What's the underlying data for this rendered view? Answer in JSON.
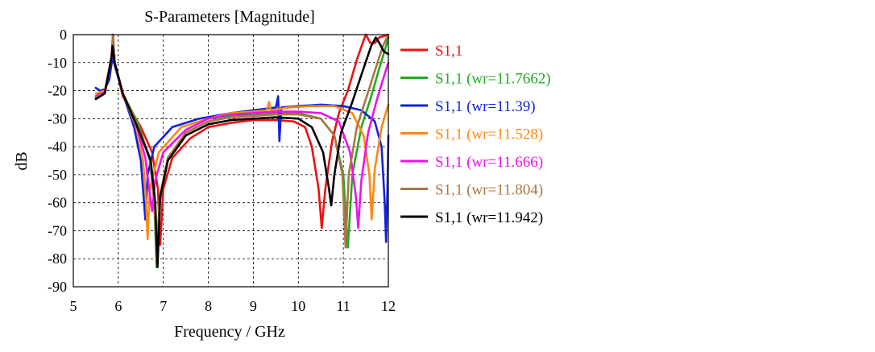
{
  "chart_data": {
    "type": "line",
    "title": "S-Parameters [Magnitude]",
    "xlabel": "Frequency / GHz",
    "ylabel": "dB",
    "xlim": [
      5,
      12
    ],
    "ylim": [
      -90,
      0
    ],
    "xticks": [
      "5",
      "6",
      "7",
      "8",
      "9",
      "10",
      "11",
      "12"
    ],
    "yticks": [
      "0",
      "-10",
      "-20",
      "-30",
      "-40",
      "-50",
      "-60",
      "-70",
      "-80",
      "-90"
    ],
    "grid": true,
    "legend_position": "right",
    "series": [
      {
        "name": "S1,1",
        "color": "#ee1111",
        "points": [
          [
            5.5,
            -22
          ],
          [
            5.7,
            -20
          ],
          [
            5.85,
            -8
          ],
          [
            5.88,
            0
          ],
          [
            5.92,
            -10
          ],
          [
            6.1,
            -22
          ],
          [
            6.5,
            -33
          ],
          [
            6.75,
            -42
          ],
          [
            6.88,
            -55
          ],
          [
            6.93,
            -75
          ],
          [
            7.0,
            -55
          ],
          [
            7.2,
            -44
          ],
          [
            7.6,
            -37
          ],
          [
            8.0,
            -33
          ],
          [
            8.5,
            -31.5
          ],
          [
            9.0,
            -30.5
          ],
          [
            9.5,
            -30.5
          ],
          [
            9.9,
            -31
          ],
          [
            10.15,
            -33
          ],
          [
            10.3,
            -40
          ],
          [
            10.45,
            -55
          ],
          [
            10.52,
            -69
          ],
          [
            10.6,
            -55
          ],
          [
            10.75,
            -38
          ],
          [
            10.9,
            -28
          ],
          [
            11.1,
            -20
          ],
          [
            11.3,
            -9
          ],
          [
            11.45,
            -2
          ],
          [
            11.5,
            0
          ],
          [
            11.6,
            -3
          ],
          [
            11.7,
            -3
          ],
          [
            11.8,
            -1
          ],
          [
            11.9,
            -0.5
          ],
          [
            12,
            0
          ]
        ]
      },
      {
        "name": "S1,1 (wr=11.7662)",
        "color": "#22aa22",
        "points": [
          [
            5.5,
            -22
          ],
          [
            5.7,
            -20.5
          ],
          [
            5.85,
            -8
          ],
          [
            5.88,
            0
          ],
          [
            5.92,
            -10
          ],
          [
            6.1,
            -21
          ],
          [
            6.45,
            -32
          ],
          [
            6.7,
            -45
          ],
          [
            6.8,
            -60
          ],
          [
            6.85,
            -83
          ],
          [
            6.92,
            -60
          ],
          [
            7.1,
            -44
          ],
          [
            7.5,
            -35
          ],
          [
            8.0,
            -31
          ],
          [
            8.5,
            -29
          ],
          [
            9.0,
            -28.5
          ],
          [
            9.5,
            -28
          ],
          [
            10.0,
            -28
          ],
          [
            10.5,
            -30
          ],
          [
            10.8,
            -36
          ],
          [
            11.0,
            -50
          ],
          [
            11.1,
            -76
          ],
          [
            11.2,
            -50
          ],
          [
            11.4,
            -33
          ],
          [
            11.6,
            -23
          ],
          [
            11.8,
            -12
          ],
          [
            11.95,
            -4
          ],
          [
            12,
            -1
          ]
        ]
      },
      {
        "name": "S1,1 (wr=11.39)",
        "color": "#1122dd",
        "points": [
          [
            5.5,
            -19
          ],
          [
            5.6,
            -20
          ],
          [
            5.7,
            -19.5
          ],
          [
            5.8,
            -16
          ],
          [
            5.87,
            -8
          ],
          [
            5.9,
            -10
          ],
          [
            6.1,
            -21
          ],
          [
            6.35,
            -33
          ],
          [
            6.5,
            -45
          ],
          [
            6.6,
            -66
          ],
          [
            6.65,
            -50
          ],
          [
            6.8,
            -40
          ],
          [
            7.2,
            -33
          ],
          [
            7.8,
            -30
          ],
          [
            8.5,
            -28
          ],
          [
            9.0,
            -27
          ],
          [
            9.5,
            -26
          ],
          [
            9.55,
            -22
          ],
          [
            9.58,
            -38
          ],
          [
            9.62,
            -26
          ],
          [
            10.0,
            -25.5
          ],
          [
            10.5,
            -25
          ],
          [
            11.0,
            -25.5
          ],
          [
            11.4,
            -27
          ],
          [
            11.7,
            -31
          ],
          [
            11.85,
            -40
          ],
          [
            11.92,
            -60
          ],
          [
            11.95,
            -74
          ],
          [
            11.98,
            -55
          ],
          [
            12,
            -36
          ]
        ]
      },
      {
        "name": "S1,1 (wr=11.528)",
        "color": "#ff8811",
        "points": [
          [
            5.5,
            -21
          ],
          [
            5.7,
            -20
          ],
          [
            5.85,
            -8
          ],
          [
            5.88,
            0
          ],
          [
            5.92,
            -10
          ],
          [
            6.1,
            -21
          ],
          [
            6.4,
            -33
          ],
          [
            6.55,
            -45
          ],
          [
            6.62,
            -60
          ],
          [
            6.65,
            -73
          ],
          [
            6.7,
            -55
          ],
          [
            6.9,
            -42
          ],
          [
            7.4,
            -33
          ],
          [
            8.0,
            -30
          ],
          [
            8.5,
            -28
          ],
          [
            9.0,
            -27.5
          ],
          [
            9.3,
            -27
          ],
          [
            9.35,
            -24
          ],
          [
            9.38,
            -27
          ],
          [
            9.8,
            -26
          ],
          [
            10.3,
            -25.5
          ],
          [
            10.8,
            -25.5
          ],
          [
            11.2,
            -28
          ],
          [
            11.45,
            -36
          ],
          [
            11.58,
            -50
          ],
          [
            11.63,
            -66
          ],
          [
            11.7,
            -48
          ],
          [
            11.85,
            -33
          ],
          [
            12,
            -25
          ]
        ]
      },
      {
        "name": "S1,1 (wr=11.666)",
        "color": "#ee11ee",
        "points": [
          [
            5.5,
            -22
          ],
          [
            5.7,
            -20.5
          ],
          [
            5.85,
            -8
          ],
          [
            5.88,
            0
          ],
          [
            5.92,
            -10
          ],
          [
            6.1,
            -21
          ],
          [
            6.4,
            -32
          ],
          [
            6.6,
            -44
          ],
          [
            6.7,
            -57
          ],
          [
            6.75,
            -63
          ],
          [
            6.82,
            -52
          ],
          [
            7.0,
            -42
          ],
          [
            7.5,
            -34
          ],
          [
            8.0,
            -30
          ],
          [
            8.5,
            -28.5
          ],
          [
            9.0,
            -28
          ],
          [
            9.5,
            -27.5
          ],
          [
            10.0,
            -27.5
          ],
          [
            10.5,
            -28
          ],
          [
            10.9,
            -31
          ],
          [
            11.15,
            -42
          ],
          [
            11.28,
            -58
          ],
          [
            11.33,
            -69
          ],
          [
            11.4,
            -52
          ],
          [
            11.55,
            -35
          ],
          [
            11.75,
            -23
          ],
          [
            11.9,
            -15
          ],
          [
            12,
            -10
          ]
        ]
      },
      {
        "name": "S1,1 (wr=11.804)",
        "color": "#aa7744",
        "points": [
          [
            5.5,
            -22.5
          ],
          [
            5.7,
            -21
          ],
          [
            5.85,
            -8
          ],
          [
            5.88,
            0
          ],
          [
            5.92,
            -10
          ],
          [
            6.1,
            -21
          ],
          [
            6.45,
            -33
          ],
          [
            6.7,
            -44
          ],
          [
            6.8,
            -58
          ],
          [
            6.85,
            -80
          ],
          [
            6.92,
            -58
          ],
          [
            7.1,
            -44
          ],
          [
            7.5,
            -35
          ],
          [
            8.0,
            -31
          ],
          [
            8.5,
            -29.5
          ],
          [
            9.0,
            -29
          ],
          [
            9.5,
            -28.5
          ],
          [
            10.0,
            -28.5
          ],
          [
            10.5,
            -30
          ],
          [
            10.8,
            -36
          ],
          [
            10.98,
            -50
          ],
          [
            11.05,
            -76
          ],
          [
            11.12,
            -50
          ],
          [
            11.3,
            -33
          ],
          [
            11.5,
            -23
          ],
          [
            11.7,
            -13
          ],
          [
            11.88,
            -4
          ],
          [
            12,
            0
          ]
        ]
      },
      {
        "name": "S1,1 (wr=11.942)",
        "color": "#000000",
        "points": [
          [
            5.5,
            -23
          ],
          [
            5.7,
            -21
          ],
          [
            5.85,
            -8
          ],
          [
            5.87,
            -4
          ],
          [
            5.92,
            -10
          ],
          [
            6.1,
            -21
          ],
          [
            6.45,
            -34
          ],
          [
            6.72,
            -45
          ],
          [
            6.82,
            -60
          ],
          [
            6.87,
            -83
          ],
          [
            6.93,
            -58
          ],
          [
            7.1,
            -45
          ],
          [
            7.5,
            -36
          ],
          [
            8.0,
            -32
          ],
          [
            8.5,
            -30.5
          ],
          [
            9.0,
            -30
          ],
          [
            9.5,
            -29.5
          ],
          [
            10.0,
            -30
          ],
          [
            10.3,
            -33
          ],
          [
            10.55,
            -42
          ],
          [
            10.68,
            -55
          ],
          [
            10.73,
            -61
          ],
          [
            10.8,
            -50
          ],
          [
            10.95,
            -35
          ],
          [
            11.2,
            -24
          ],
          [
            11.45,
            -12
          ],
          [
            11.62,
            -4
          ],
          [
            11.72,
            -1
          ],
          [
            11.8,
            -3
          ],
          [
            11.9,
            -6
          ],
          [
            12,
            -7
          ]
        ]
      }
    ]
  }
}
